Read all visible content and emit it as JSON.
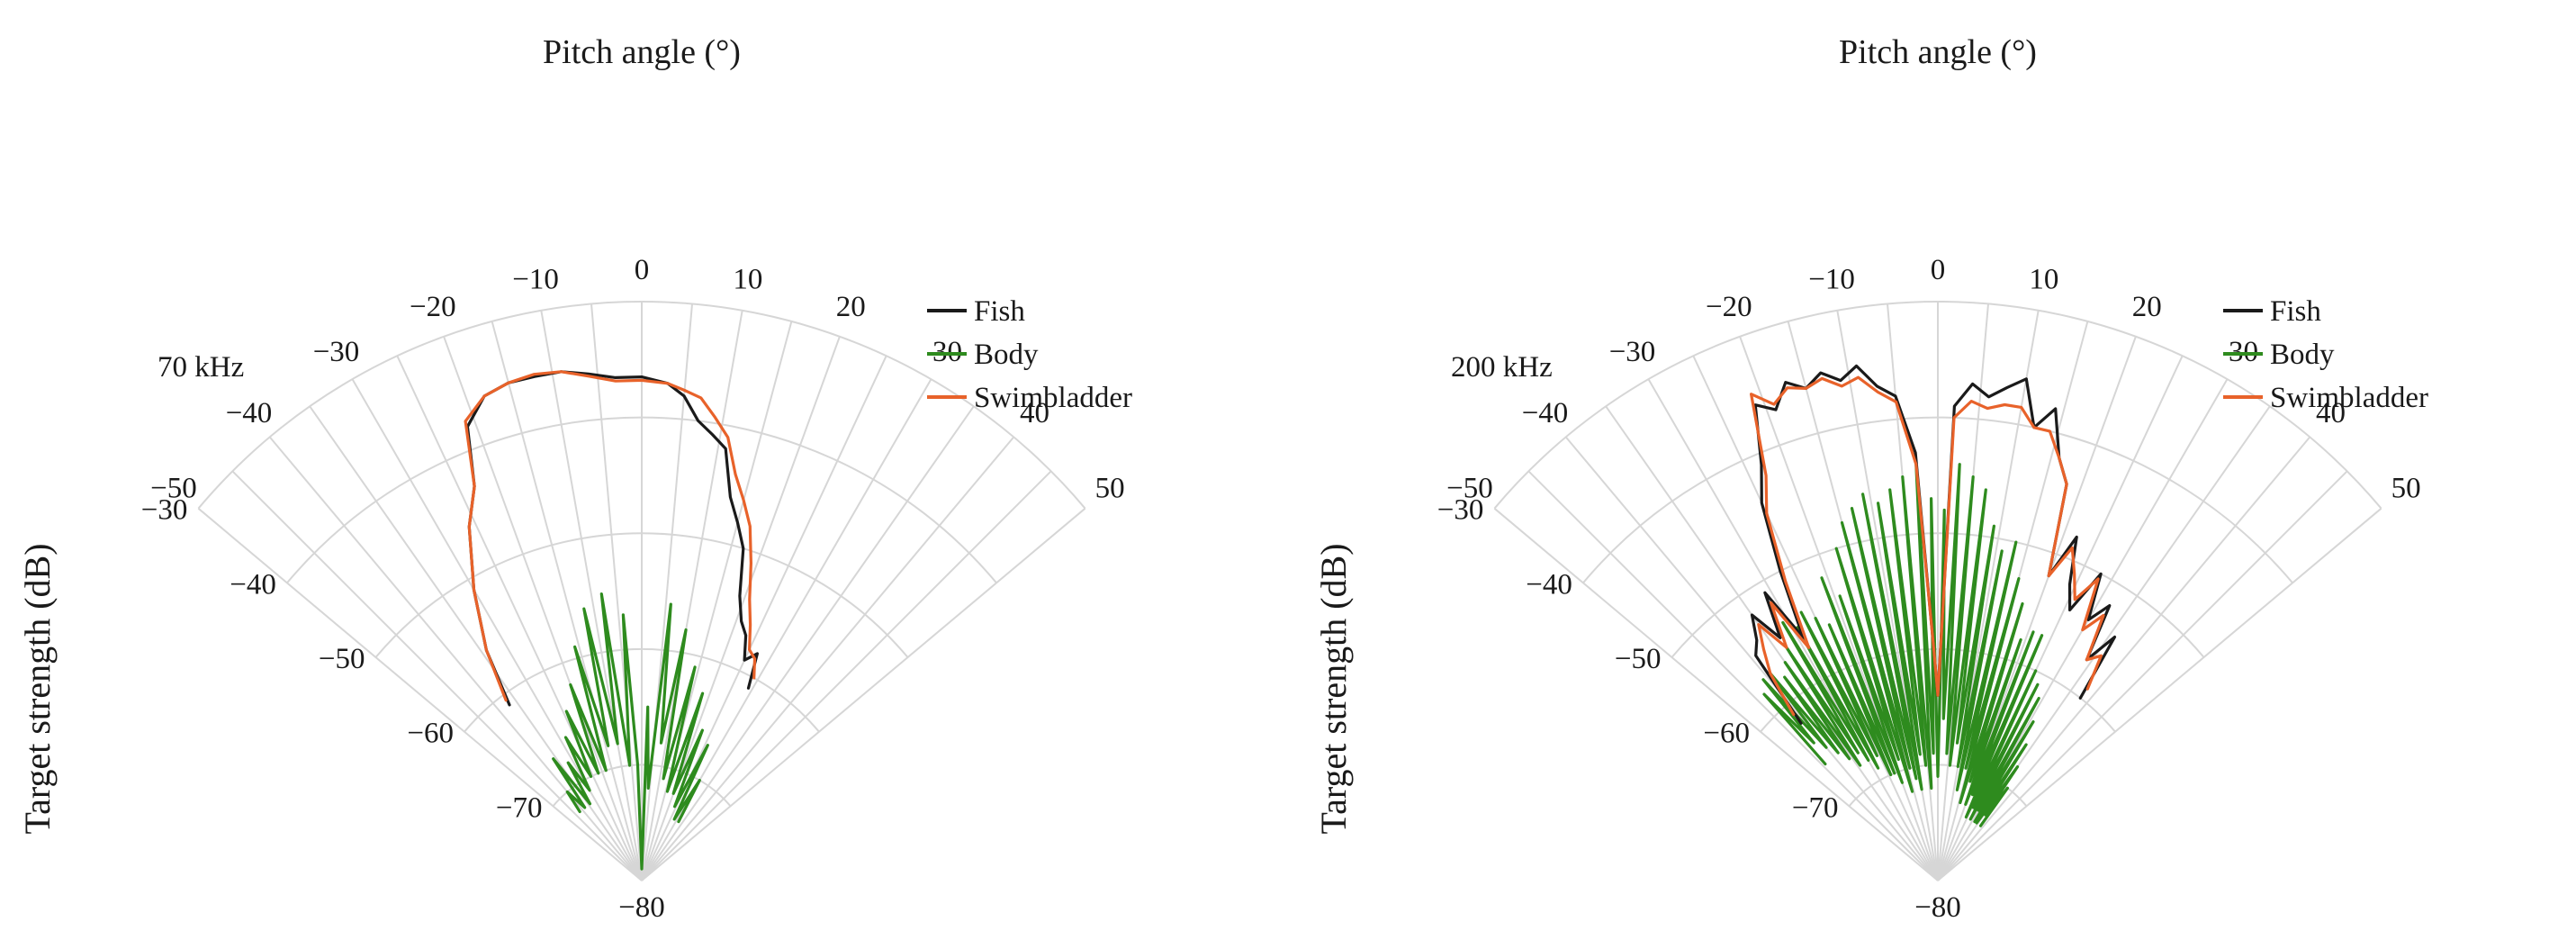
{
  "figure": {
    "panels": [
      {
        "frequency_label": "70 kHz"
      },
      {
        "frequency_label": "200 kHz"
      }
    ]
  },
  "chart_data": [
    {
      "type": "polar-sector",
      "title": "Pitch angle (°)",
      "ylabel": "Target strength (dB)",
      "annotation": "70 kHz",
      "theta_range": [
        -50,
        50
      ],
      "theta_ticks": [
        "−50",
        "−40",
        "−30",
        "−20",
        "−10",
        "0",
        "10",
        "20",
        "30",
        "40",
        "50"
      ],
      "theta_tick_values": [
        -50,
        -40,
        -30,
        -20,
        -10,
        0,
        10,
        20,
        30,
        40,
        50
      ],
      "r_range": [
        -80,
        -30
      ],
      "r_ticks": [
        "−30",
        "−40",
        "−50",
        "−60",
        "−70",
        "−80"
      ],
      "r_tick_values": [
        -30,
        -40,
        -50,
        -60,
        -70,
        -80
      ],
      "legend": [
        "Fish",
        "Body",
        "Swimbladder"
      ],
      "colors": {
        "Fish": "#1a1a1a",
        "Body": "#2e8b1e",
        "Swimbladder": "#e8622a"
      },
      "series": [
        {
          "name": "Fish",
          "angle": [
            -37,
            -34,
            -30,
            -26,
            -23,
            -21,
            -18,
            -15,
            -12,
            -9,
            -6,
            -3,
            0,
            3,
            5,
            7,
            9,
            11,
            13,
            15,
            17,
            19,
            21,
            23,
            25,
            27,
            29
          ],
          "value": [
            -61,
            -56,
            -51,
            -46,
            -43,
            -38,
            -36,
            -35.5,
            -35.5,
            -35.5,
            -36,
            -36.5,
            -36.5,
            -37,
            -38,
            -40,
            -41,
            -42,
            -46,
            -48,
            -50,
            -54,
            -56,
            -57,
            -59,
            -58,
            -61
          ]
        },
        {
          "name": "Swimbladder",
          "angle": [
            -37,
            -34,
            -30,
            -26,
            -23,
            -21,
            -18,
            -15,
            -12,
            -9,
            -6,
            -3,
            0,
            3,
            5,
            7,
            9,
            11,
            13,
            15,
            17,
            19,
            21,
            23,
            25,
            27,
            29
          ],
          "value": [
            -60.5,
            -56,
            -51,
            -46,
            -43,
            -37.5,
            -36,
            -35.5,
            -35.3,
            -35.5,
            -36.2,
            -36.8,
            -36.8,
            -37,
            -37.5,
            -38,
            -39.5,
            -41,
            -44,
            -46,
            -48,
            -51,
            -54,
            -56,
            -58,
            -58.5,
            -60
          ]
        },
        {
          "name": "Body",
          "angle": [
            -42,
            -40,
            -38,
            -36,
            -34,
            -32,
            -30,
            -28,
            -26,
            -24,
            -22,
            -20,
            -18,
            -16,
            -14,
            -12,
            -10,
            -8,
            -6,
            -4,
            -2,
            0,
            2,
            4,
            6,
            8,
            10,
            12,
            14,
            16,
            18,
            20,
            22,
            24,
            26,
            28,
            30,
            32
          ],
          "value": [
            -72,
            -70,
            -72,
            -67,
            -72,
            -68,
            -71,
            -66,
            -70,
            -64,
            -70,
            -62,
            -70,
            -59,
            -68,
            -56,
            -68,
            -55,
            -70,
            -57,
            -70,
            -79,
            -65,
            -72,
            -56,
            -68,
            -58,
            -71,
            -61,
            -72,
            -63,
            -72,
            -66,
            -73,
            -67,
            -74,
            -70,
            -74
          ]
        }
      ]
    },
    {
      "type": "polar-sector",
      "title": "Pitch angle (°)",
      "ylabel": "Target strength (dB)",
      "annotation": "200 kHz",
      "theta_range": [
        -50,
        50
      ],
      "theta_ticks": [
        "−50",
        "−40",
        "−30",
        "−20",
        "−10",
        "0",
        "10",
        "20",
        "30",
        "40",
        "50"
      ],
      "theta_tick_values": [
        -50,
        -40,
        -30,
        -20,
        -10,
        0,
        10,
        20,
        30,
        40,
        50
      ],
      "r_range": [
        -80,
        -30
      ],
      "r_ticks": [
        "−30",
        "−40",
        "−50",
        "−60",
        "−70",
        "−80"
      ],
      "r_tick_values": [
        -30,
        -40,
        -50,
        -60,
        -70,
        -80
      ],
      "legend": [
        "Fish",
        "Body",
        "Swimbladder"
      ],
      "colors": {
        "Fish": "#1a1a1a",
        "Body": "#2e8b1e",
        "Swimbladder": "#e8622a"
      },
      "series": [
        {
          "name": "Fish",
          "angle": [
            -41,
            -39,
            -37,
            -35,
            -33,
            -31,
            -29,
            -27,
            -25,
            -23,
            -21,
            -19,
            -17,
            -15,
            -13,
            -11,
            -9,
            -7,
            -5,
            -3,
            -1,
            0,
            2,
            4,
            6,
            8,
            10,
            12,
            14,
            16,
            18,
            20,
            22,
            24,
            26,
            28,
            30,
            32,
            34,
            36,
            38
          ],
          "value": [
            -62,
            -55,
            -54,
            -52,
            -55,
            -51,
            -56,
            -50,
            -44,
            -41,
            -36,
            -37,
            -35,
            -36,
            -35,
            -36,
            -35,
            -37,
            -38,
            -43,
            -60,
            -64,
            -39,
            -37,
            -38,
            -37,
            -36,
            -40,
            -38,
            -42,
            -44,
            -52,
            -48,
            -52,
            -54,
            -50,
            -54,
            -52,
            -57,
            -54,
            -60
          ]
        },
        {
          "name": "Swimbladder",
          "angle": [
            -41,
            -39,
            -37,
            -35,
            -33,
            -31,
            -29,
            -27,
            -25,
            -23,
            -21,
            -19,
            -17,
            -15,
            -13,
            -11,
            -9,
            -7,
            -5,
            -3,
            -1,
            0,
            2,
            4,
            6,
            8,
            10,
            12,
            14,
            16,
            18,
            20,
            22,
            24,
            26,
            28,
            30,
            32,
            34,
            36,
            38
          ],
          "value": [
            -61,
            -57,
            -55,
            -53,
            -56,
            -52,
            -57,
            -51,
            -45,
            -42,
            -35,
            -36.5,
            -35.5,
            -36,
            -35.5,
            -36.5,
            -36,
            -37.5,
            -38.5,
            -44,
            -60,
            -64,
            -40,
            -38.5,
            -39,
            -38.5,
            -38.5,
            -40,
            -40,
            -42,
            -44,
            -52,
            -49,
            -51,
            -53,
            -50.5,
            -55,
            -53,
            -57,
            -56,
            -59
          ]
        },
        {
          "name": "Body",
          "angle": [
            -44,
            -43,
            -42,
            -41,
            -40,
            -39,
            -38,
            -37,
            -36,
            -35,
            -34,
            -33,
            -32,
            -31,
            -30,
            -29,
            -28,
            -27,
            -26,
            -25,
            -24,
            -23,
            -22,
            -21,
            -20,
            -19,
            -18,
            -17,
            -16,
            -15,
            -14,
            -13,
            -12,
            -11,
            -10,
            -9,
            -8,
            -7,
            -6,
            -5,
            -4,
            -3,
            -2,
            -1,
            0,
            1,
            2,
            3,
            4,
            5,
            6,
            7,
            8,
            9,
            10,
            11,
            12,
            13,
            14,
            15,
            16,
            17,
            18,
            19,
            20,
            21,
            22,
            23,
            24,
            25,
            26,
            27,
            28,
            29,
            30,
            31,
            32,
            33,
            34,
            35,
            36,
            37,
            38
          ],
          "value": [
            -66,
            -58,
            -64,
            -57,
            -65,
            -57,
            -66,
            -58,
            -67,
            -57,
            -68,
            -56,
            -67,
            -54,
            -68,
            -55,
            -69,
            -54,
            -68,
            -55,
            -70,
            -56,
            -70,
            -52,
            -71,
            -54,
            -69,
            -50,
            -72,
            -48,
            -70,
            -47,
            -71,
            -46,
            -72,
            -47,
            -69,
            -46,
            -70,
            -45,
            -72,
            -44,
            -69,
            -47,
            -71,
            -48,
            -66,
            -44,
            -69,
            -45,
            -70,
            -46,
            -68,
            -49,
            -70,
            -51,
            -72,
            -50,
            -70,
            -53,
            -73,
            -55,
            -71,
            -58,
            -73,
            -57,
            -72,
            -57,
            -74,
            -60,
            -73,
            -61,
            -74,
            -62,
            -73,
            -64,
            -74,
            -66,
            -74,
            -68,
            -73,
            -70,
            -74
          ]
        }
      ]
    }
  ]
}
